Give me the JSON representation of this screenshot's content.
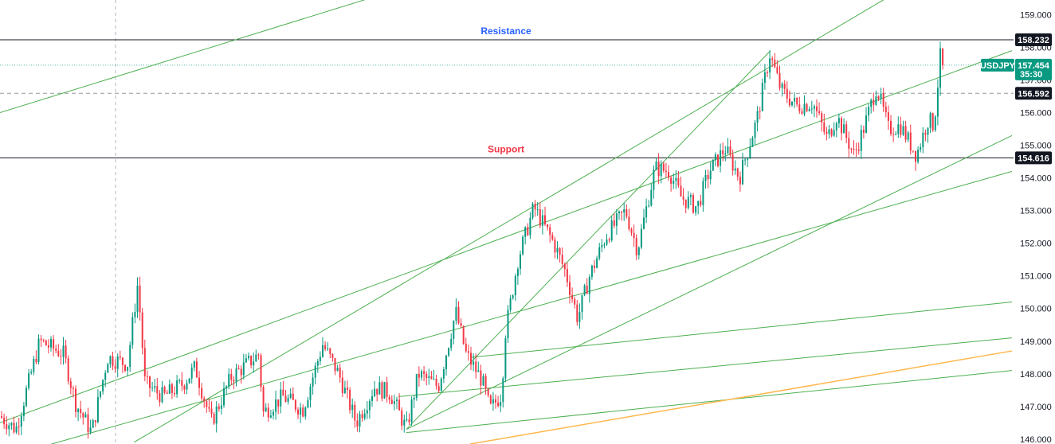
{
  "chart_data": {
    "type": "candlestick",
    "symbol": "USDJPY",
    "last_price": "157.454",
    "countdown": "35:30",
    "y_axis": {
      "min": 145.85,
      "max": 159.45,
      "ticks": [
        "146.000",
        "147.000",
        "148.000",
        "149.000",
        "150.000",
        "151.000",
        "152.000",
        "153.000",
        "154.000",
        "155.000",
        "156.000",
        "157.000",
        "158.000",
        "159.000"
      ]
    },
    "levels": [
      {
        "label": "158.232",
        "value": 158.232,
        "style": "solid"
      },
      {
        "label": "156.592",
        "value": 156.592,
        "style": "dashed"
      },
      {
        "label": "154.616",
        "value": 154.616,
        "style": "solid"
      }
    ],
    "annotations": [
      {
        "text": "Resistance",
        "color": "#2962ff",
        "value": 158.232
      },
      {
        "text": "Support",
        "color": "#f23645",
        "value": 154.616
      }
    ],
    "price_path": [
      {
        "i": 0,
        "p": 146.7
      },
      {
        "i": 20,
        "p": 146.3
      },
      {
        "i": 50,
        "p": 149.0
      },
      {
        "i": 80,
        "p": 148.6
      },
      {
        "i": 95,
        "p": 147.1
      },
      {
        "i": 115,
        "p": 146.2
      },
      {
        "i": 135,
        "p": 148.5
      },
      {
        "i": 160,
        "p": 148.3
      },
      {
        "i": 173,
        "p": 150.8
      },
      {
        "i": 182,
        "p": 147.7
      },
      {
        "i": 205,
        "p": 147.3
      },
      {
        "i": 230,
        "p": 147.7
      },
      {
        "i": 245,
        "p": 148.2
      },
      {
        "i": 265,
        "p": 146.5
      },
      {
        "i": 290,
        "p": 147.9
      },
      {
        "i": 325,
        "p": 148.6
      },
      {
        "i": 330,
        "p": 146.8
      },
      {
        "i": 355,
        "p": 147.3
      },
      {
        "i": 380,
        "p": 146.9
      },
      {
        "i": 405,
        "p": 148.9
      },
      {
        "i": 425,
        "p": 148.0
      },
      {
        "i": 447,
        "p": 146.5
      },
      {
        "i": 470,
        "p": 147.6
      },
      {
        "i": 490,
        "p": 147.4
      },
      {
        "i": 510,
        "p": 146.3
      },
      {
        "i": 525,
        "p": 148.0
      },
      {
        "i": 550,
        "p": 147.6
      },
      {
        "i": 572,
        "p": 149.9
      },
      {
        "i": 585,
        "p": 148.6
      },
      {
        "i": 605,
        "p": 147.8
      },
      {
        "i": 615,
        "p": 146.9
      },
      {
        "i": 630,
        "p": 147.4
      },
      {
        "i": 633,
        "p": 149.1
      },
      {
        "i": 650,
        "p": 151.5
      },
      {
        "i": 670,
        "p": 153.1
      },
      {
        "i": 695,
        "p": 152.0
      },
      {
        "i": 710,
        "p": 151.1
      },
      {
        "i": 725,
        "p": 149.7
      },
      {
        "i": 740,
        "p": 151.0
      },
      {
        "i": 760,
        "p": 152.2
      },
      {
        "i": 785,
        "p": 153.0
      },
      {
        "i": 800,
        "p": 151.8
      },
      {
        "i": 822,
        "p": 154.3
      },
      {
        "i": 840,
        "p": 154.2
      },
      {
        "i": 855,
        "p": 153.4
      },
      {
        "i": 875,
        "p": 153.1
      },
      {
        "i": 890,
        "p": 154.2
      },
      {
        "i": 910,
        "p": 154.9
      },
      {
        "i": 928,
        "p": 154.0
      },
      {
        "i": 950,
        "p": 155.8
      },
      {
        "i": 966,
        "p": 157.8
      },
      {
        "i": 980,
        "p": 156.7
      },
      {
        "i": 1000,
        "p": 156.2
      },
      {
        "i": 1020,
        "p": 156.3
      },
      {
        "i": 1038,
        "p": 155.2
      },
      {
        "i": 1050,
        "p": 155.9
      },
      {
        "i": 1072,
        "p": 154.7
      },
      {
        "i": 1085,
        "p": 155.6
      },
      {
        "i": 1100,
        "p": 156.8
      },
      {
        "i": 1115,
        "p": 155.5
      },
      {
        "i": 1130,
        "p": 155.6
      },
      {
        "i": 1150,
        "p": 154.7
      },
      {
        "i": 1165,
        "p": 155.8
      },
      {
        "i": 1172,
        "p": 155.6
      },
      {
        "i": 1180,
        "p": 157.7
      },
      {
        "i": 1186,
        "p": 157.454
      }
    ],
    "trendlines": [
      {
        "x1": 0,
        "y1": 156.0,
        "x2": 1324,
        "y2": 166.0,
        "color": "#4caf50"
      },
      {
        "x1": 168,
        "y1": 145.9,
        "x2": 1112,
        "y2": 159.5,
        "color": "#4caf50"
      },
      {
        "x1": 510,
        "y1": 146.3,
        "x2": 967,
        "y2": 157.9,
        "color": "#4caf50"
      },
      {
        "x1": 510,
        "y1": 146.3,
        "x2": 1270,
        "y2": 155.3,
        "color": "#4caf50"
      },
      {
        "x1": 0,
        "y1": 146.5,
        "x2": 1270,
        "y2": 157.9,
        "color": "#4caf50"
      },
      {
        "x1": 0,
        "y1": 145.4,
        "x2": 1270,
        "y2": 154.2,
        "color": "#4caf50"
      },
      {
        "x1": 590,
        "y1": 148.5,
        "x2": 1270,
        "y2": 150.2,
        "color": "#4caf50"
      },
      {
        "x1": 500,
        "y1": 147.3,
        "x2": 1270,
        "y2": 149.1,
        "color": "#4caf50"
      },
      {
        "x1": 510,
        "y1": 146.2,
        "x2": 1270,
        "y2": 148.1,
        "color": "#4caf50"
      },
      {
        "x1": 590,
        "y1": 145.85,
        "x2": 1270,
        "y2": 148.7,
        "color": "#ffb74d"
      }
    ],
    "vertical_marker_index": 145,
    "colors": {
      "up": "#089981",
      "down": "#f23645",
      "tag_bg": "#131722",
      "last_bg": "#089981"
    }
  }
}
